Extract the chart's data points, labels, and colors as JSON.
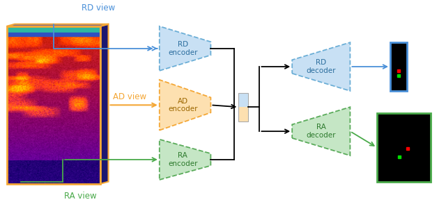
{
  "fig_width": 6.4,
  "fig_height": 2.91,
  "dpi": 100,
  "bg_color": "#ffffff",
  "radar_main_color_top": "#1a006e",
  "radar_main_color_bot": "#ff8800",
  "cube_right_color": "#2a2080",
  "cube_top_color": "#5555aa",
  "cube_edge_color": "#f4a736",
  "rd_encoder": {
    "label": "RD\nencoder",
    "color": "#c8e0f4",
    "edge": "#6baed6"
  },
  "ad_encoder": {
    "label": "AD\nencoder",
    "color": "#fde0b0",
    "edge": "#f4a736"
  },
  "ra_encoder": {
    "label": "RA\nencoder",
    "color": "#c5e6c5",
    "edge": "#5aab5a"
  },
  "rd_decoder": {
    "label": "RD\ndecoder",
    "color": "#c8e0f4",
    "edge": "#6baed6"
  },
  "ra_decoder": {
    "label": "RA\ndecoder",
    "color": "#c5e6c5",
    "edge": "#5aab5a"
  },
  "rd_view_label": "RD view",
  "ad_view_label": "AD view",
  "ra_view_label": "RA view",
  "blue_color": "#4a90d9",
  "orange_color": "#f4a736",
  "green_color": "#4aaa4a",
  "black_color": "#111111",
  "enc_text_blue": "#2c6e9e",
  "enc_text_orange": "#9c6700",
  "enc_text_green": "#2d7a2d"
}
